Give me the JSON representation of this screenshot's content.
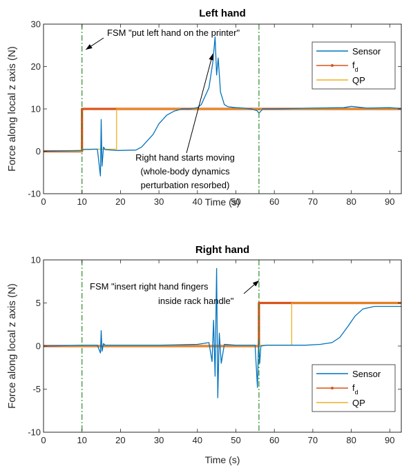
{
  "colors": {
    "sensor": "#0072BD",
    "fd": "#D95319",
    "qp": "#EDB120",
    "event_line": "#2E8B2E",
    "axis": "#262626"
  },
  "shared": {
    "ylabel": "Force along local z axis (N)",
    "xlabel": "Time (s)",
    "legend": [
      "Sensor",
      "f",
      "QP"
    ],
    "legend_fd_subscript": "d"
  },
  "chart_data": [
    {
      "type": "line",
      "title": "Left hand",
      "xlabel": "Time (s)",
      "ylabel": "Force along local z axis (N)",
      "xlim": [
        0,
        93
      ],
      "ylim": [
        -10,
        30
      ],
      "xticks": [
        "0",
        "10",
        "20",
        "30",
        "40",
        "50",
        "60",
        "70",
        "80",
        "90"
      ],
      "yticks": [
        "-10",
        "0",
        "10",
        "20",
        "30"
      ],
      "legend_position": "top-right",
      "grid": false,
      "event_lines_x": [
        10,
        56
      ],
      "annotations": [
        {
          "text": "FSM \"put left hand on the printer\"",
          "arrow_to": [
            11,
            24
          ]
        },
        {
          "text": "Right hand starts moving",
          "arrow_to": [
            44,
            23
          ]
        },
        {
          "text": "(whole-body dynamics",
          "arrow_to": null
        },
        {
          "text": "perturbation resorbed)",
          "arrow_to": null
        }
      ],
      "series": [
        {
          "name": "Sensor",
          "x": [
            0,
            10,
            10.3,
            14,
            14.8,
            15,
            15.2,
            15.6,
            16,
            19,
            24,
            25.5,
            27,
            28.5,
            30,
            31,
            32,
            34,
            36,
            38,
            40,
            41,
            42,
            43,
            44,
            44.6,
            45,
            45.4,
            46,
            47,
            48,
            50,
            52,
            54,
            55.5,
            56,
            57,
            60,
            70,
            78,
            80,
            84,
            90,
            93
          ],
          "y": [
            0,
            0.2,
            0.4,
            0.5,
            -5.8,
            7.5,
            -3.5,
            1,
            0.4,
            0.2,
            0.3,
            1,
            2.5,
            4,
            6.5,
            7.5,
            8.5,
            9.5,
            10,
            10,
            10.3,
            11,
            13,
            15,
            21,
            27,
            18,
            22,
            14,
            11,
            10.5,
            10.3,
            10.2,
            10,
            9.6,
            9,
            10,
            10,
            10.2,
            10.3,
            10.6,
            10.2,
            10.3,
            10.1
          ]
        },
        {
          "name": "f_d",
          "x": [
            0,
            10,
            10,
            93
          ],
          "y": [
            0,
            0,
            10,
            10
          ]
        },
        {
          "name": "QP",
          "x": [
            0,
            10,
            10,
            19,
            19,
            93
          ],
          "y": [
            0,
            0,
            0.5,
            0.5,
            10,
            10
          ]
        }
      ]
    },
    {
      "type": "line",
      "title": "Right hand",
      "xlabel": "Time (s)",
      "ylabel": "Force along local z axis (N)",
      "xlim": [
        0,
        93
      ],
      "ylim": [
        -10,
        10
      ],
      "xticks": [
        "0",
        "10",
        "20",
        "30",
        "40",
        "50",
        "60",
        "70",
        "80",
        "90"
      ],
      "yticks": [
        "-10",
        "-5",
        "0",
        "5",
        "10"
      ],
      "legend_position": "bottom-right",
      "grid": false,
      "event_lines_x": [
        10,
        56
      ],
      "annotations": [
        {
          "text": "FSM \"insert right hand fingers",
          "arrow_to": [
            56,
            7.6
          ]
        },
        {
          "text": "inside rack handle\"",
          "arrow_to": null
        }
      ],
      "series": [
        {
          "name": "Sensor",
          "x": [
            0,
            10,
            14,
            14.8,
            15,
            15.2,
            15.6,
            16,
            20,
            30,
            40,
            43,
            43.8,
            44.2,
            44.6,
            45,
            45.3,
            45.7,
            46.2,
            47,
            50,
            55,
            55.6,
            55.9,
            56.2,
            56.5,
            58,
            64,
            68,
            72,
            75,
            77,
            79,
            81,
            83,
            86,
            93
          ],
          "y": [
            0,
            0.1,
            0.1,
            -0.8,
            1.8,
            -0.6,
            0.3,
            0.1,
            0.1,
            0.1,
            0.2,
            0.4,
            -1.8,
            3,
            -3.5,
            9,
            -6,
            1.5,
            -2,
            0.2,
            0.1,
            0.1,
            -4.8,
            0.6,
            -2,
            0,
            0.1,
            0.1,
            0.1,
            0.2,
            0.4,
            1,
            2.2,
            3.5,
            4.3,
            4.6,
            4.6
          ]
        },
        {
          "name": "f_d",
          "x": [
            0,
            56,
            56,
            93
          ],
          "y": [
            0,
            0,
            5,
            5
          ]
        },
        {
          "name": "QP",
          "x": [
            0,
            56,
            56,
            64.5,
            64.5,
            93
          ],
          "y": [
            0,
            0,
            0.1,
            0.1,
            5,
            5
          ]
        }
      ]
    }
  ]
}
